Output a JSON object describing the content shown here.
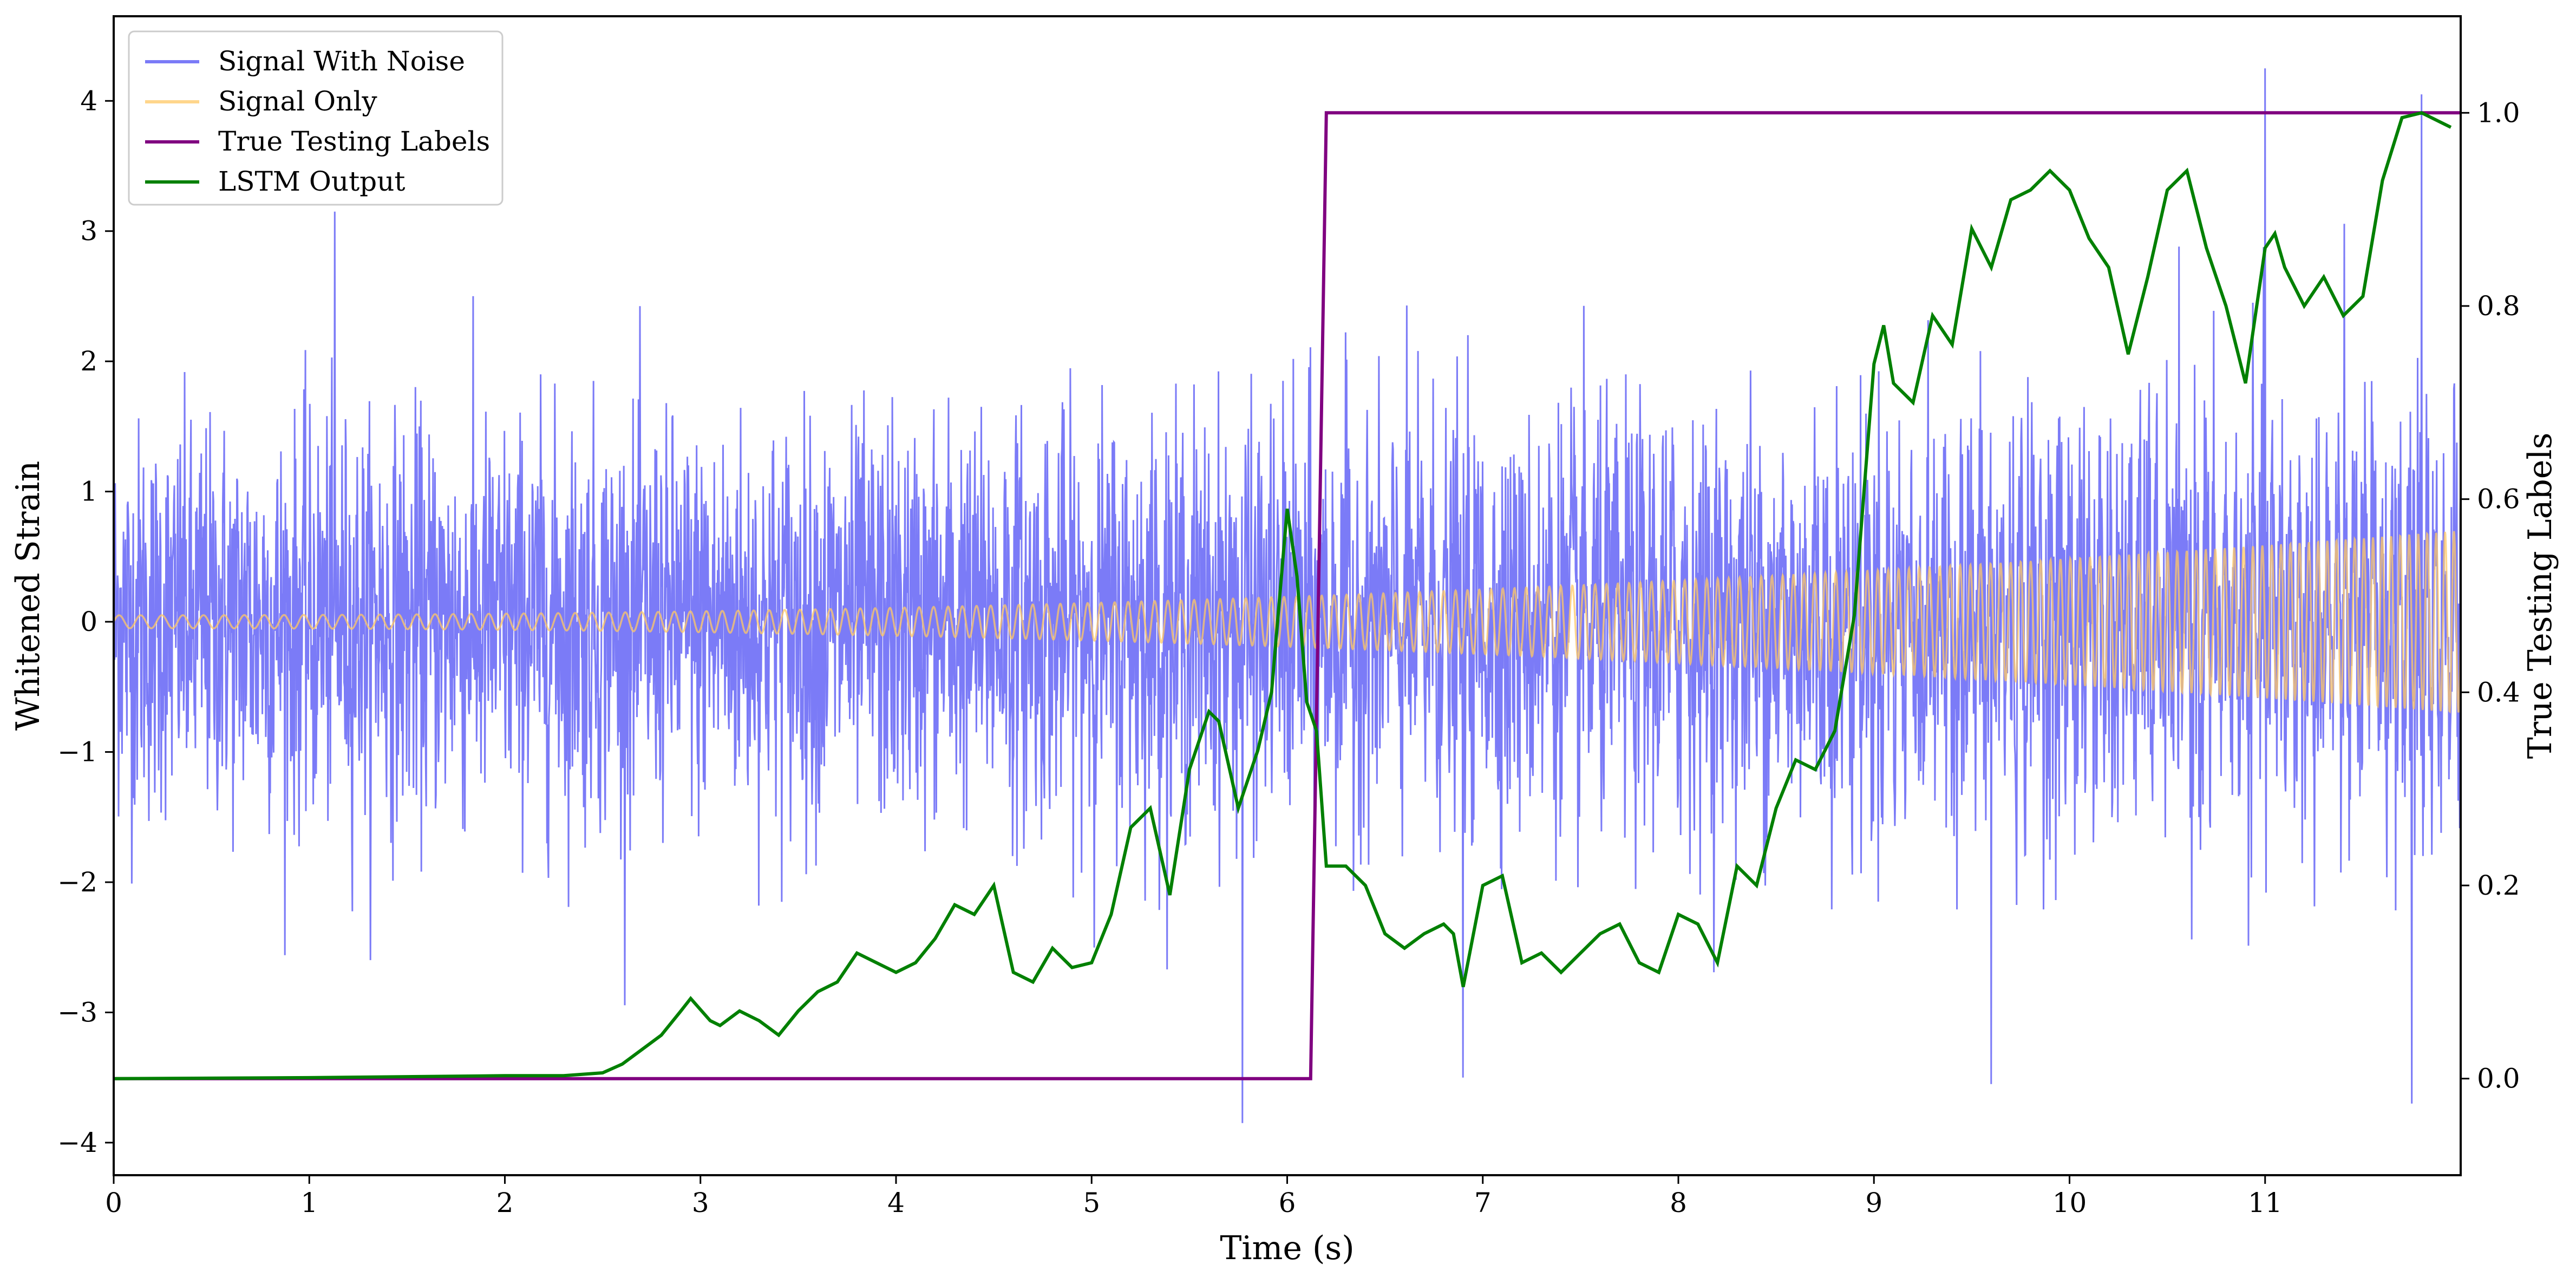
{
  "chart_data": {
    "type": "line",
    "title": "",
    "xlabel": "Time (s)",
    "ylabel_left": "Whitened Strain",
    "ylabel_right": "True Testing Labels",
    "xlim": [
      0,
      12
    ],
    "ylim_left": [
      -4.25,
      4.65
    ],
    "ylim_right": [
      -0.1,
      1.1
    ],
    "x_ticks": [
      0,
      1,
      2,
      3,
      4,
      5,
      6,
      7,
      8,
      9,
      10,
      11
    ],
    "y_left_ticks": [
      {
        "v": -4,
        "label": "−4"
      },
      {
        "v": -3,
        "label": "−3"
      },
      {
        "v": -2,
        "label": "−2"
      },
      {
        "v": -1,
        "label": "−1"
      },
      {
        "v": 0,
        "label": "0"
      },
      {
        "v": 1,
        "label": "1"
      },
      {
        "v": 2,
        "label": "2"
      },
      {
        "v": 3,
        "label": "3"
      },
      {
        "v": 4,
        "label": "4"
      }
    ],
    "y_right_ticks": [
      {
        "v": 0.0,
        "label": "0.0"
      },
      {
        "v": 0.2,
        "label": "0.2"
      },
      {
        "v": 0.4,
        "label": "0.4"
      },
      {
        "v": 0.6,
        "label": "0.6"
      },
      {
        "v": 0.8,
        "label": "0.8"
      },
      {
        "v": 1.0,
        "label": "1.0"
      }
    ],
    "grid": false,
    "legend_position": "top-left",
    "series": [
      {
        "name": "Signal With Noise",
        "axis": "left",
        "color": "#7b7bf7",
        "description_points": {
          "noise_std": 0.75,
          "notable_spikes": [
            {
              "x": 1.13,
              "y": 3.15
            },
            {
              "x": 5.77,
              "y": -3.85
            },
            {
              "x": 6.9,
              "y": -3.5
            },
            {
              "x": 9.6,
              "y": -3.55
            },
            {
              "x": 11.0,
              "y": 4.25
            },
            {
              "x": 11.75,
              "y": -3.7
            },
            {
              "x": 11.8,
              "y": 4.05
            }
          ]
        }
      },
      {
        "name": "Signal Only",
        "axis": "left",
        "color": "#ffc866",
        "chirp": {
          "amp_start": 0.05,
          "amp_end": 0.7,
          "freq_start": 9,
          "freq_end": 22
        }
      },
      {
        "name": "True Testing Labels",
        "axis": "right",
        "color": "#800080",
        "x": [
          0,
          6.12,
          6.2,
          12.0
        ],
        "y": [
          0,
          0,
          1,
          1
        ]
      },
      {
        "name": "LSTM Output",
        "axis": "right",
        "color": "#008000",
        "x": [
          0,
          1.0,
          1.5,
          2.0,
          2.3,
          2.5,
          2.6,
          2.7,
          2.8,
          2.9,
          2.95,
          3.05,
          3.1,
          3.2,
          3.3,
          3.4,
          3.5,
          3.6,
          3.7,
          3.8,
          3.9,
          4.0,
          4.1,
          4.2,
          4.3,
          4.4,
          4.5,
          4.6,
          4.7,
          4.8,
          4.9,
          5.0,
          5.1,
          5.2,
          5.3,
          5.4,
          5.5,
          5.6,
          5.65,
          5.75,
          5.85,
          5.92,
          6.0,
          6.05,
          6.1,
          6.15,
          6.2,
          6.3,
          6.4,
          6.5,
          6.6,
          6.7,
          6.8,
          6.85,
          6.9,
          7.0,
          7.1,
          7.2,
          7.3,
          7.4,
          7.5,
          7.6,
          7.7,
          7.8,
          7.9,
          8.0,
          8.1,
          8.2,
          8.3,
          8.4,
          8.5,
          8.6,
          8.7,
          8.8,
          8.9,
          9.0,
          9.05,
          9.1,
          9.2,
          9.3,
          9.4,
          9.5,
          9.6,
          9.7,
          9.8,
          9.9,
          10.0,
          10.1,
          10.2,
          10.3,
          10.4,
          10.5,
          10.6,
          10.7,
          10.8,
          10.9,
          11.0,
          11.05,
          11.1,
          11.2,
          11.3,
          11.4,
          11.5,
          11.6,
          11.7,
          11.8,
          11.9,
          11.95
        ],
        "y": [
          0.0,
          0.001,
          0.002,
          0.003,
          0.003,
          0.006,
          0.015,
          0.03,
          0.045,
          0.07,
          0.083,
          0.06,
          0.055,
          0.07,
          0.06,
          0.045,
          0.07,
          0.09,
          0.1,
          0.13,
          0.12,
          0.11,
          0.12,
          0.145,
          0.18,
          0.17,
          0.2,
          0.11,
          0.1,
          0.135,
          0.115,
          0.12,
          0.17,
          0.26,
          0.28,
          0.19,
          0.32,
          0.38,
          0.37,
          0.28,
          0.34,
          0.4,
          0.59,
          0.52,
          0.39,
          0.36,
          0.22,
          0.22,
          0.2,
          0.15,
          0.135,
          0.15,
          0.16,
          0.15,
          0.095,
          0.2,
          0.21,
          0.12,
          0.13,
          0.11,
          0.13,
          0.15,
          0.16,
          0.12,
          0.11,
          0.17,
          0.16,
          0.12,
          0.22,
          0.2,
          0.28,
          0.33,
          0.32,
          0.36,
          0.48,
          0.74,
          0.78,
          0.72,
          0.7,
          0.79,
          0.76,
          0.88,
          0.84,
          0.91,
          0.92,
          0.94,
          0.92,
          0.87,
          0.84,
          0.75,
          0.83,
          0.92,
          0.94,
          0.86,
          0.8,
          0.72,
          0.86,
          0.875,
          0.84,
          0.8,
          0.83,
          0.79,
          0.81,
          0.93,
          0.995,
          1.0,
          0.99,
          0.985
        ]
      }
    ]
  }
}
